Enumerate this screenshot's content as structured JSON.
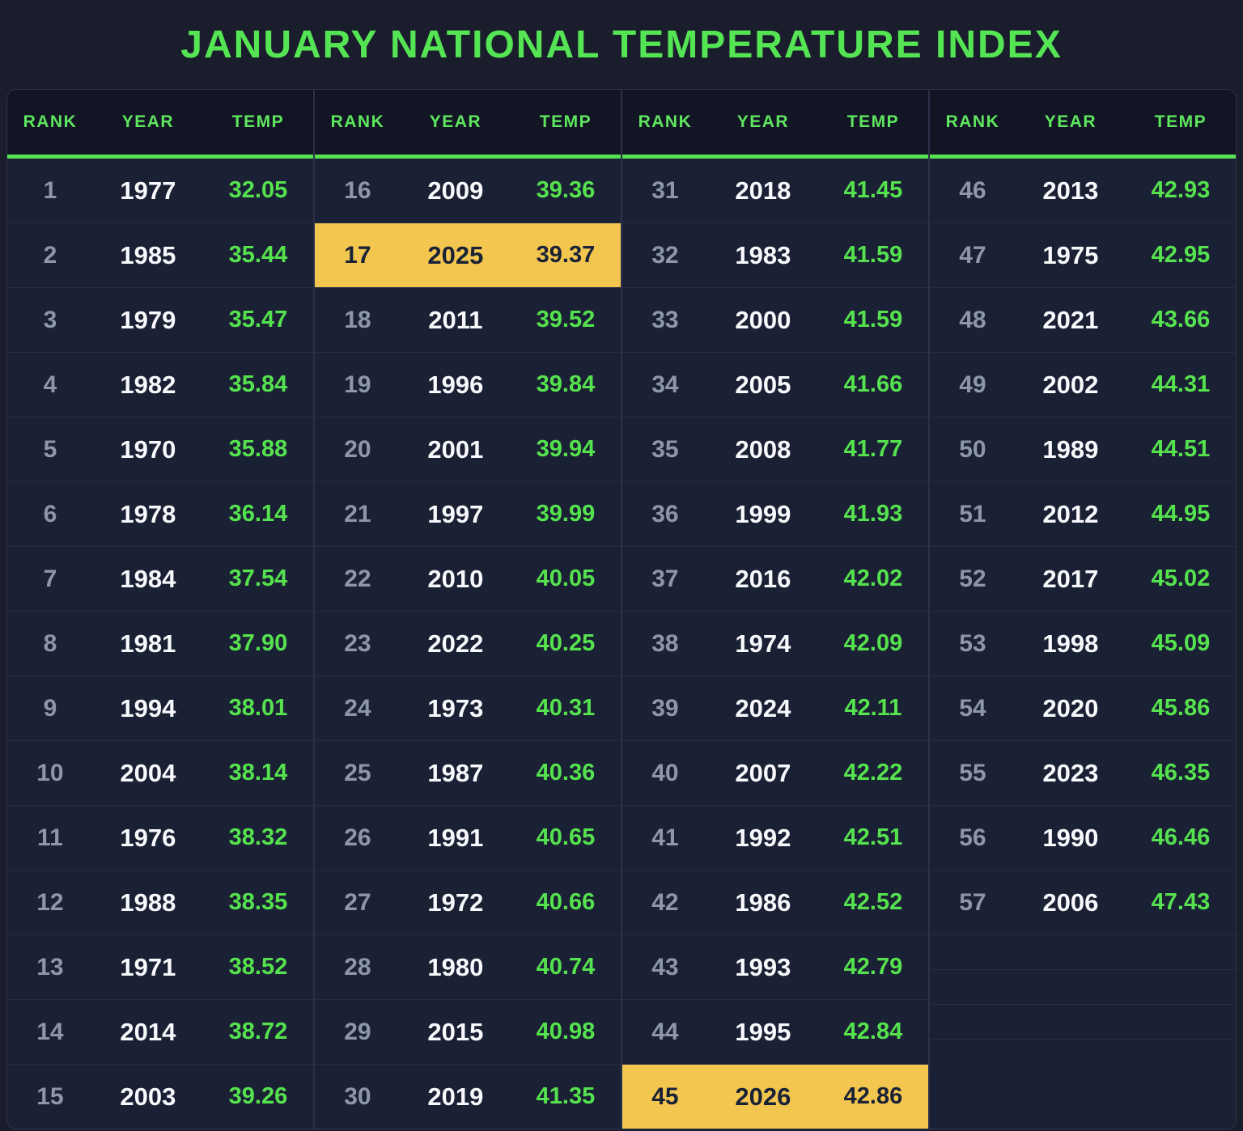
{
  "title": "JANUARY NATIONAL TEMPERATURE INDEX",
  "colors": {
    "page_background": "#1a1d2b",
    "card_background": "#1b2134",
    "header_background": "#121624",
    "accent_green": "#55e24e",
    "highlight_yellow": "#f3c64f",
    "highlight_text": "#1a2236",
    "rank_gray": "#8d96aa",
    "year_white": "#f7f9fc",
    "separator": "#272d42"
  },
  "chart_data": {
    "type": "table",
    "title": "JANUARY NATIONAL TEMPERATURE INDEX",
    "columns": [
      "RANK",
      "YEAR",
      "TEMP"
    ],
    "rows_per_column": 15,
    "column_groups": 4,
    "highlighted_years": [
      2025,
      2026
    ],
    "rows": [
      {
        "rank": 1,
        "year": 1977,
        "temp": "32.05"
      },
      {
        "rank": 2,
        "year": 1985,
        "temp": "35.44"
      },
      {
        "rank": 3,
        "year": 1979,
        "temp": "35.47"
      },
      {
        "rank": 4,
        "year": 1982,
        "temp": "35.84"
      },
      {
        "rank": 5,
        "year": 1970,
        "temp": "35.88"
      },
      {
        "rank": 6,
        "year": 1978,
        "temp": "36.14"
      },
      {
        "rank": 7,
        "year": 1984,
        "temp": "37.54"
      },
      {
        "rank": 8,
        "year": 1981,
        "temp": "37.90"
      },
      {
        "rank": 9,
        "year": 1994,
        "temp": "38.01"
      },
      {
        "rank": 10,
        "year": 2004,
        "temp": "38.14"
      },
      {
        "rank": 11,
        "year": 1976,
        "temp": "38.32"
      },
      {
        "rank": 12,
        "year": 1988,
        "temp": "38.35"
      },
      {
        "rank": 13,
        "year": 1971,
        "temp": "38.52"
      },
      {
        "rank": 14,
        "year": 2014,
        "temp": "38.72"
      },
      {
        "rank": 15,
        "year": 2003,
        "temp": "39.26"
      },
      {
        "rank": 16,
        "year": 2009,
        "temp": "39.36"
      },
      {
        "rank": 17,
        "year": 2025,
        "temp": "39.37",
        "highlighted": true
      },
      {
        "rank": 18,
        "year": 2011,
        "temp": "39.52"
      },
      {
        "rank": 19,
        "year": 1996,
        "temp": "39.84"
      },
      {
        "rank": 20,
        "year": 2001,
        "temp": "39.94"
      },
      {
        "rank": 21,
        "year": 1997,
        "temp": "39.99"
      },
      {
        "rank": 22,
        "year": 2010,
        "temp": "40.05"
      },
      {
        "rank": 23,
        "year": 2022,
        "temp": "40.25"
      },
      {
        "rank": 24,
        "year": 1973,
        "temp": "40.31"
      },
      {
        "rank": 25,
        "year": 1987,
        "temp": "40.36"
      },
      {
        "rank": 26,
        "year": 1991,
        "temp": "40.65"
      },
      {
        "rank": 27,
        "year": 1972,
        "temp": "40.66"
      },
      {
        "rank": 28,
        "year": 1980,
        "temp": "40.74"
      },
      {
        "rank": 29,
        "year": 2015,
        "temp": "40.98"
      },
      {
        "rank": 30,
        "year": 2019,
        "temp": "41.35"
      },
      {
        "rank": 31,
        "year": 2018,
        "temp": "41.45"
      },
      {
        "rank": 32,
        "year": 1983,
        "temp": "41.59"
      },
      {
        "rank": 33,
        "year": 2000,
        "temp": "41.59"
      },
      {
        "rank": 34,
        "year": 2005,
        "temp": "41.66"
      },
      {
        "rank": 35,
        "year": 2008,
        "temp": "41.77"
      },
      {
        "rank": 36,
        "year": 1999,
        "temp": "41.93"
      },
      {
        "rank": 37,
        "year": 2016,
        "temp": "42.02"
      },
      {
        "rank": 38,
        "year": 1974,
        "temp": "42.09"
      },
      {
        "rank": 39,
        "year": 2024,
        "temp": "42.11"
      },
      {
        "rank": 40,
        "year": 2007,
        "temp": "42.22"
      },
      {
        "rank": 41,
        "year": 1992,
        "temp": "42.51"
      },
      {
        "rank": 42,
        "year": 1986,
        "temp": "42.52"
      },
      {
        "rank": 43,
        "year": 1993,
        "temp": "42.79"
      },
      {
        "rank": 44,
        "year": 1995,
        "temp": "42.84"
      },
      {
        "rank": 45,
        "year": 2026,
        "temp": "42.86",
        "highlighted": true
      },
      {
        "rank": 46,
        "year": 2013,
        "temp": "42.93"
      },
      {
        "rank": 47,
        "year": 1975,
        "temp": "42.95"
      },
      {
        "rank": 48,
        "year": 2021,
        "temp": "43.66"
      },
      {
        "rank": 49,
        "year": 2002,
        "temp": "44.31"
      },
      {
        "rank": 50,
        "year": 1989,
        "temp": "44.51"
      },
      {
        "rank": 51,
        "year": 2012,
        "temp": "44.95"
      },
      {
        "rank": 52,
        "year": 2017,
        "temp": "45.02"
      },
      {
        "rank": 53,
        "year": 1998,
        "temp": "45.09"
      },
      {
        "rank": 54,
        "year": 2020,
        "temp": "45.86"
      },
      {
        "rank": 55,
        "year": 2023,
        "temp": "46.35"
      },
      {
        "rank": 56,
        "year": 1990,
        "temp": "46.46"
      },
      {
        "rank": 57,
        "year": 2006,
        "temp": "47.43"
      }
    ]
  }
}
